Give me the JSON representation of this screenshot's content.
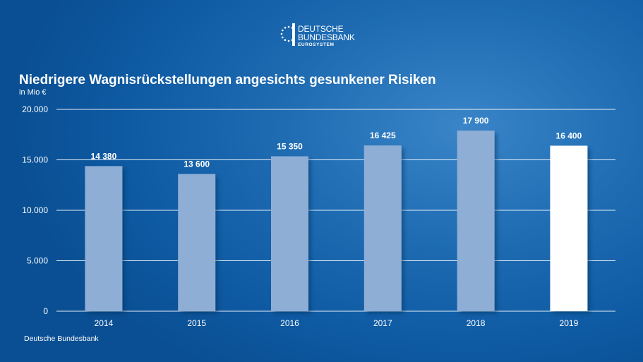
{
  "logo": {
    "line1": "DEUTSCHE",
    "line2": "BUNDESBANK",
    "line3": "EUROSYSTEM"
  },
  "chart_title": "Niedrigere Wagnisrückstellungen angesichts gesunkener Risiken",
  "unit_label": "in Mio €",
  "source": "Deutsche Bundesbank",
  "chart_data": {
    "type": "bar",
    "title": "Niedrigere Wagnisrückstellungen angesichts gesunkener Risiken",
    "ylabel": "in Mio €",
    "xlabel": "",
    "categories": [
      "2014",
      "2015",
      "2016",
      "2017",
      "2018",
      "2019"
    ],
    "values": [
      14380,
      13600,
      15350,
      16425,
      17900,
      16400
    ],
    "value_labels": [
      "14 380",
      "13 600",
      "15 350",
      "16 425",
      "17 900",
      "16 400"
    ],
    "ylim": [
      0,
      20000
    ],
    "yticks": [
      0,
      5000,
      10000,
      15000,
      20000
    ],
    "ytick_labels": [
      "0",
      "5.000",
      "10.000",
      "15.000",
      "20.000"
    ],
    "grid": true,
    "colors": {
      "bar": "#8eaed6",
      "highlight_bar": "#ffffff",
      "background": "#1f6cb3",
      "text": "#ffffff"
    },
    "highlight_index": 5
  }
}
